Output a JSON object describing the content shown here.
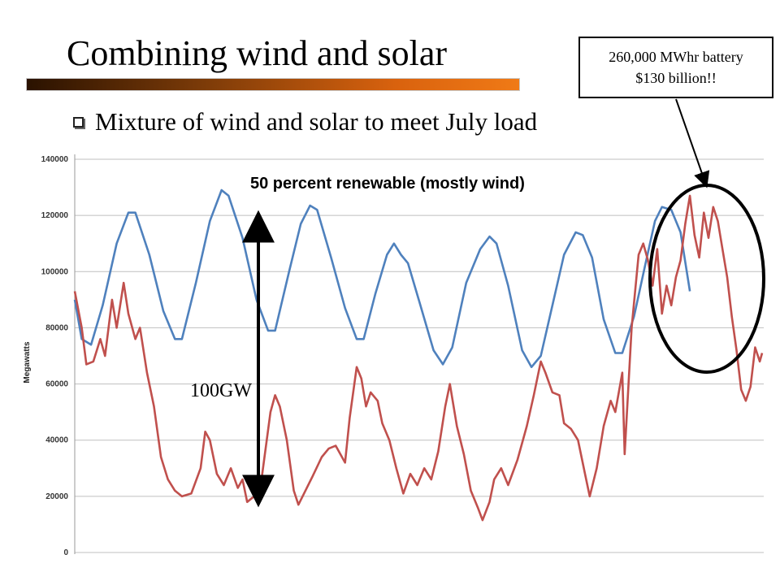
{
  "slide": {
    "title": "Combining wind and solar",
    "bullet": "Mixture of wind and solar to meet July load",
    "callout_line1": "260,000 MWhr battery",
    "callout_line2": "$130 billion!!",
    "gap_label": "\u0001100GW"
  },
  "chart_data": {
    "type": "line",
    "title": "50 percent renewable (mostly wind)",
    "xlabel": "",
    "ylabel": "Megawatts",
    "ylim": [
      0,
      140000
    ],
    "yticks": [
      "0",
      "20000",
      "40000",
      "60000",
      "80000",
      "100000",
      "120000",
      "140000"
    ],
    "grid": true,
    "series": [
      {
        "color": "#4f81bd",
        "points": [
          [
            0,
            90000
          ],
          [
            1.5,
            76000
          ],
          [
            3.5,
            74000
          ],
          [
            6,
            88000
          ],
          [
            9,
            110000
          ],
          [
            11.5,
            121000
          ],
          [
            13,
            121000
          ],
          [
            16,
            106000
          ],
          [
            19,
            86000
          ],
          [
            21.5,
            76000
          ],
          [
            23,
            76000
          ],
          [
            26,
            96000
          ],
          [
            29,
            118000
          ],
          [
            31.5,
            129000
          ],
          [
            33,
            127000
          ],
          [
            36,
            112000
          ],
          [
            39,
            90000
          ],
          [
            41.5,
            79000
          ],
          [
            43,
            79000
          ],
          [
            46,
            100000
          ],
          [
            48.5,
            117000
          ],
          [
            50.5,
            123500
          ],
          [
            52,
            122000
          ],
          [
            55,
            105000
          ],
          [
            58,
            87000
          ],
          [
            60.5,
            76000
          ],
          [
            62,
            76000
          ],
          [
            64.5,
            92000
          ],
          [
            67,
            106000
          ],
          [
            68.5,
            110000
          ],
          [
            70,
            106000
          ],
          [
            71.5,
            103000
          ],
          [
            74,
            89000
          ],
          [
            77,
            72000
          ],
          [
            79,
            67000
          ],
          [
            81,
            73000
          ],
          [
            84,
            96000
          ],
          [
            87,
            108000
          ],
          [
            89,
            112500
          ],
          [
            90.5,
            110000
          ],
          [
            93,
            95000
          ],
          [
            96,
            72000
          ],
          [
            98,
            66000
          ],
          [
            100,
            70000
          ],
          [
            102.5,
            88000
          ],
          [
            105,
            106000
          ],
          [
            107.5,
            114000
          ],
          [
            109,
            113000
          ],
          [
            111,
            105000
          ],
          [
            113.5,
            83000
          ],
          [
            116,
            71000
          ],
          [
            117.5,
            71000
          ],
          [
            120,
            84000
          ],
          [
            122.5,
            103000
          ],
          [
            124.5,
            118000
          ],
          [
            126,
            123000
          ],
          [
            128,
            122000
          ],
          [
            130,
            114000
          ],
          [
            132,
            93000
          ]
        ]
      },
      {
        "color": "#c0504d",
        "points": [
          [
            0,
            93000
          ],
          [
            1.5,
            80000
          ],
          [
            2.5,
            67000
          ],
          [
            4,
            68000
          ],
          [
            5.5,
            76000
          ],
          [
            6.5,
            70000
          ],
          [
            8,
            90000
          ],
          [
            9,
            80000
          ],
          [
            10.5,
            96000
          ],
          [
            11.5,
            85000
          ],
          [
            13,
            76000
          ],
          [
            14,
            80000
          ],
          [
            15.5,
            64000
          ],
          [
            17,
            52000
          ],
          [
            18.5,
            34000
          ],
          [
            20,
            26000
          ],
          [
            21.5,
            22000
          ],
          [
            23,
            20000
          ],
          [
            25,
            21000
          ],
          [
            27,
            30000
          ],
          [
            28,
            43000
          ],
          [
            29,
            40000
          ],
          [
            30.5,
            28000
          ],
          [
            32,
            24000
          ],
          [
            33.5,
            30000
          ],
          [
            35,
            23000
          ],
          [
            36,
            26000
          ],
          [
            37,
            18000
          ],
          [
            38.5,
            20000
          ],
          [
            40,
            25000
          ],
          [
            42,
            50000
          ],
          [
            43,
            56000
          ],
          [
            44,
            52000
          ],
          [
            45.5,
            40000
          ],
          [
            47,
            22000
          ],
          [
            48,
            17000
          ],
          [
            49.5,
            22000
          ],
          [
            51,
            27000
          ],
          [
            53,
            34000
          ],
          [
            54.5,
            37000
          ],
          [
            56,
            38000
          ],
          [
            58,
            32000
          ],
          [
            59,
            48000
          ],
          [
            60.5,
            66000
          ],
          [
            61.5,
            62000
          ],
          [
            62.5,
            52000
          ],
          [
            63.5,
            57000
          ],
          [
            65,
            54000
          ],
          [
            66,
            46000
          ],
          [
            67.5,
            40000
          ],
          [
            69,
            30000
          ],
          [
            70.5,
            21000
          ],
          [
            72,
            28000
          ],
          [
            73.5,
            24000
          ],
          [
            75,
            30000
          ],
          [
            76.5,
            26000
          ],
          [
            78,
            36000
          ],
          [
            79.5,
            52000
          ],
          [
            80.5,
            60000
          ],
          [
            82,
            45000
          ],
          [
            83.5,
            35000
          ],
          [
            85,
            22000
          ],
          [
            86.5,
            16000
          ],
          [
            87.5,
            11500
          ],
          [
            89,
            18000
          ],
          [
            90,
            26000
          ],
          [
            91.5,
            30000
          ],
          [
            93,
            24000
          ],
          [
            95,
            33000
          ],
          [
            97,
            45000
          ],
          [
            98.5,
            56000
          ],
          [
            100,
            68000
          ],
          [
            101,
            64000
          ],
          [
            102.5,
            57000
          ],
          [
            104,
            56000
          ],
          [
            105,
            46000
          ],
          [
            106.5,
            44000
          ],
          [
            108,
            40000
          ],
          [
            109.5,
            28000
          ],
          [
            110.5,
            20000
          ],
          [
            112,
            30000
          ],
          [
            113.5,
            45000
          ],
          [
            115,
            54000
          ],
          [
            116,
            50000
          ],
          [
            117.5,
            64000
          ],
          [
            118,
            35000
          ],
          [
            119.5,
            80000
          ],
          [
            121,
            106000
          ],
          [
            122,
            110000
          ],
          [
            123,
            104000
          ],
          [
            124,
            95000
          ],
          [
            125,
            108000
          ],
          [
            126,
            85000
          ],
          [
            127,
            95000
          ],
          [
            128,
            88000
          ],
          [
            129,
            98000
          ],
          [
            130,
            104000
          ],
          [
            131,
            117000
          ],
          [
            132,
            127000
          ],
          [
            133,
            113000
          ],
          [
            134,
            105000
          ],
          [
            135,
            121000
          ],
          [
            136,
            112000
          ],
          [
            137,
            123000
          ],
          [
            138,
            118000
          ],
          [
            139,
            108000
          ],
          [
            140,
            98000
          ],
          [
            141,
            84000
          ],
          [
            142,
            72000
          ],
          [
            143,
            58000
          ],
          [
            144,
            54000
          ],
          [
            145,
            59000
          ],
          [
            146,
            73000
          ],
          [
            147,
            68000
          ],
          [
            147.5,
            71000
          ]
        ]
      }
    ]
  },
  "annotations": {
    "arrow_top_value": 119000,
    "arrow_bottom_value": 19000,
    "ellipse_color": "#000000"
  }
}
